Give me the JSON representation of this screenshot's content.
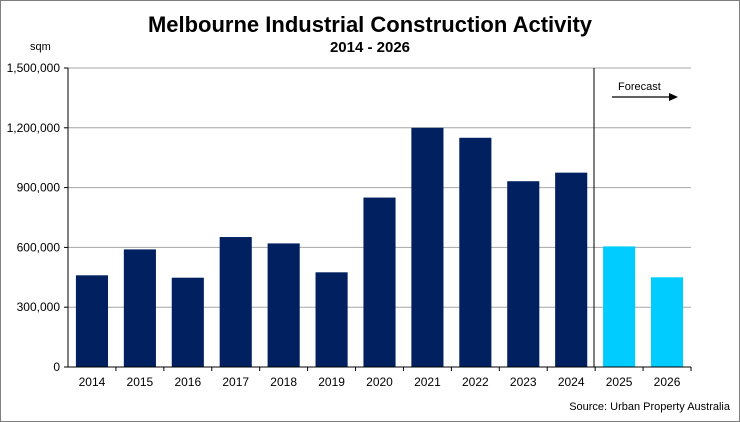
{
  "chart_data": {
    "type": "bar",
    "title": "Melbourne Industrial Construction Activity",
    "subtitle": "2014 - 2026",
    "ylabel": "sqm",
    "xlabel": "",
    "ylim": [
      0,
      1500000
    ],
    "yticks": [
      0,
      300000,
      600000,
      900000,
      1200000,
      1500000
    ],
    "ytick_labels": [
      "0",
      "300,000",
      "600,000",
      "900,000",
      "1,200,000",
      "1,500,000"
    ],
    "grid": true,
    "categories": [
      "2014",
      "2015",
      "2016",
      "2017",
      "2018",
      "2019",
      "2020",
      "2021",
      "2022",
      "2023",
      "2024",
      "2025",
      "2026"
    ],
    "values": [
      460000,
      590000,
      448000,
      652000,
      620000,
      475000,
      850000,
      1200000,
      1150000,
      932000,
      975000,
      605000,
      450000
    ],
    "forecast_from_index": 11,
    "colors": {
      "actual": "#002060",
      "forecast": "#00CCFF"
    },
    "annotation": "Forecast",
    "source": "Source: Urban Property Australia"
  }
}
